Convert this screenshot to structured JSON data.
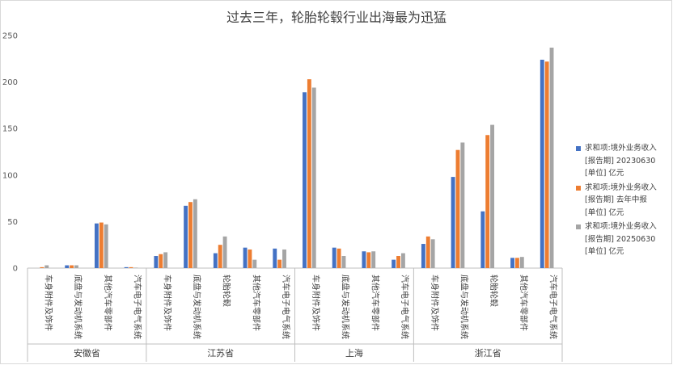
{
  "chart_data": {
    "type": "bar",
    "title": "过去三年，轮胎轮毂行业出海最为迅猛",
    "xlabel": "",
    "ylabel": "",
    "ylim": [
      0,
      250
    ],
    "yticks": [
      "0",
      "50",
      "100",
      "150",
      "200",
      "250"
    ],
    "grid": false,
    "legend_position": "right",
    "colors": [
      "#4472c4",
      "#ed7d31",
      "#a5a5a5"
    ],
    "groups": [
      {
        "name": "安徽省",
        "categories": [
          "车身附件及饰件",
          "底盘与发动机系统",
          "其他汽车零部件",
          "汽车电子电气系统"
        ]
      },
      {
        "name": "江苏省",
        "categories": [
          "车身附件及饰件",
          "底盘与发动机系统",
          "轮胎轮毂",
          "其他汽车零部件",
          "汽车电子电气系统"
        ]
      },
      {
        "name": "上海",
        "categories": [
          "车身附件及饰件",
          "底盘与发动机系统",
          "其他汽车零部件",
          "汽车电子电气系统"
        ]
      },
      {
        "name": "浙江省",
        "categories": [
          "车身附件及饰件",
          "底盘与发动机系统",
          "轮胎轮毂",
          "其他汽车零部件",
          "汽车电子电气系统"
        ]
      }
    ],
    "series": [
      {
        "name": [
          "求和项:境外业务收入",
          "[报告期] 20230630",
          "[单位] 亿元"
        ],
        "values": [
          0,
          3,
          48,
          1,
          13,
          67,
          16,
          22,
          21,
          189,
          22,
          18,
          9,
          26,
          98,
          61,
          11,
          224
        ]
      },
      {
        "name": [
          "求和项:境外业务收入",
          "[报告期] 去年中报",
          "[单位] 亿元"
        ],
        "values": [
          1,
          3,
          49,
          1,
          15,
          71,
          25,
          20,
          9,
          203,
          21,
          17,
          13,
          34,
          127,
          143,
          11,
          222
        ]
      },
      {
        "name": [
          "求和项:境外业务收入",
          "[报告期] 20250630",
          "[单位] 亿元"
        ],
        "values": [
          3,
          3,
          47,
          0.5,
          17,
          74,
          34,
          9,
          20,
          194,
          13,
          18,
          16,
          31,
          135,
          154,
          12,
          237
        ]
      }
    ]
  }
}
